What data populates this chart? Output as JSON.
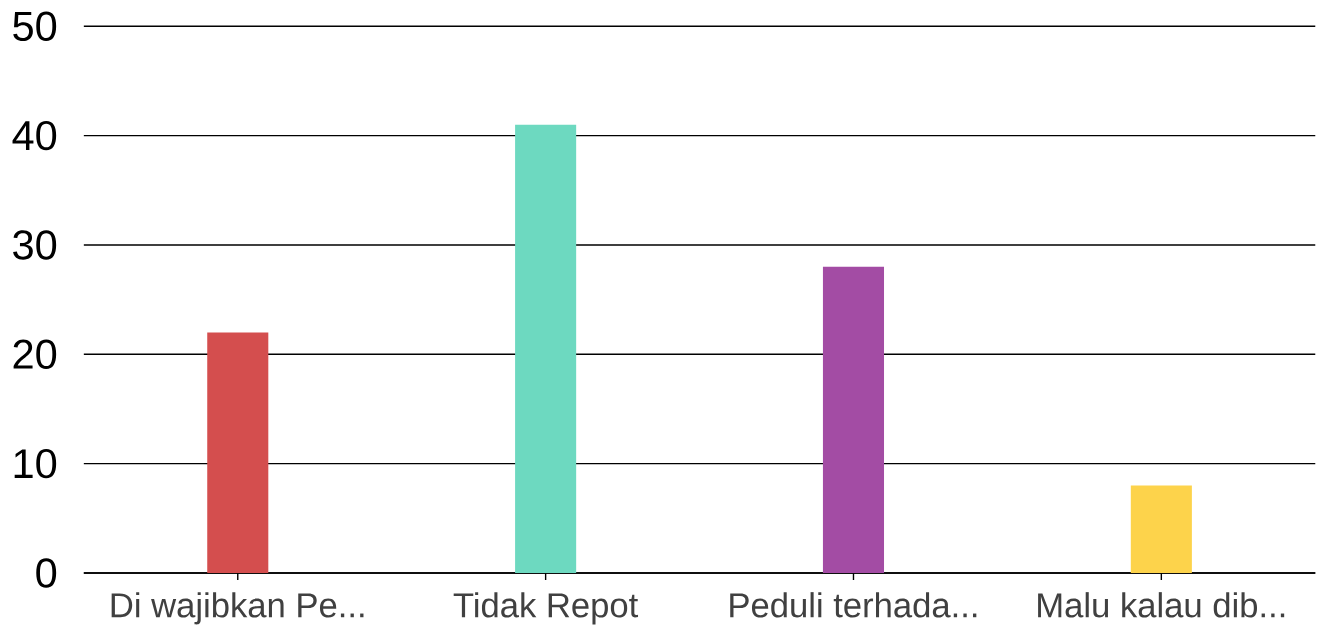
{
  "chart_data": {
    "type": "bar",
    "categories": [
      "Di wajibkan Pe...",
      "Tidak Repot",
      "Peduli terhada...",
      "Malu kalau dib..."
    ],
    "values": [
      22,
      41,
      28,
      8
    ],
    "colors": [
      "#d44e4e",
      "#6dd9c0",
      "#a34ca4",
      "#fdd34b"
    ],
    "ylim": [
      0,
      50
    ],
    "yticks": [
      0,
      10,
      20,
      30,
      40,
      50
    ],
    "grid": "y"
  }
}
